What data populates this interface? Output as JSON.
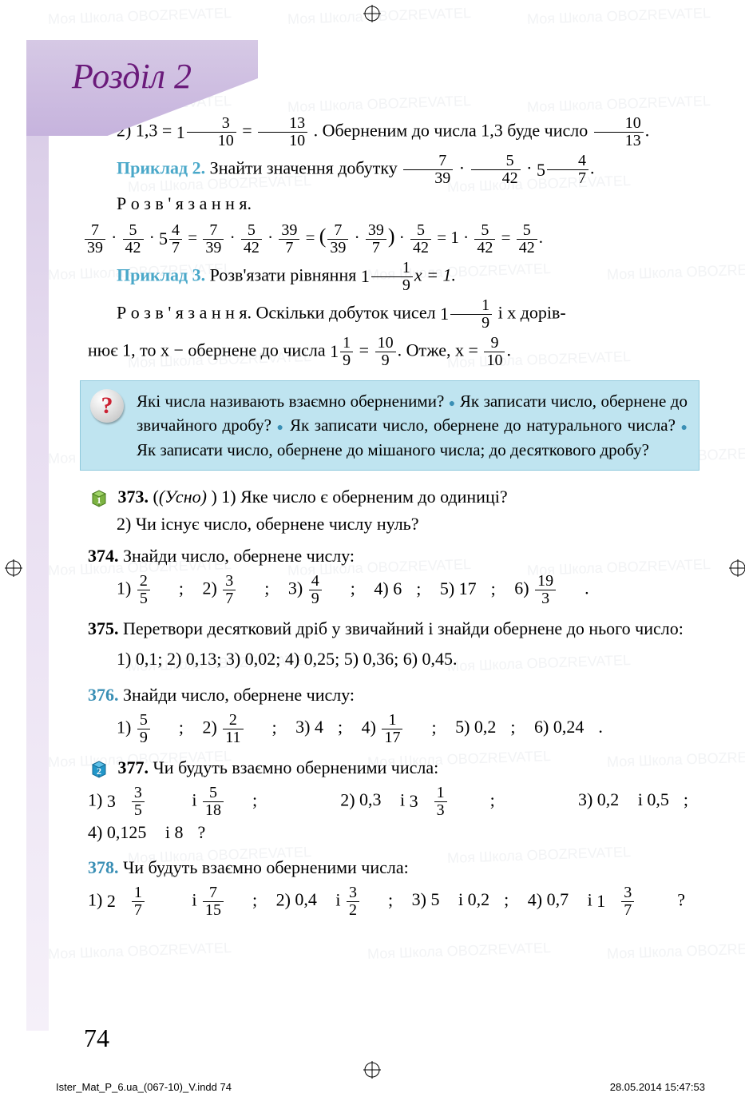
{
  "page": {
    "section_title": "Розділ 2",
    "page_number": "74",
    "footer_left": "Ister_Mat_P_6.ua_(067-10)_V.indd   74",
    "footer_right": "28.05.2014   15:47:53"
  },
  "line2": {
    "prefix": "2) 1,3 = ",
    "mix_int": "1",
    "mix_n": "3",
    "mix_d": "10",
    "eq": " = ",
    "f2_n": "13",
    "f2_d": "10",
    "text": ". Оберненим до числа 1,3 буде число ",
    "f3_n": "10",
    "f3_d": "13",
    "dot": "."
  },
  "ex2": {
    "label": "Приклад 2.",
    "text": " Знайти значення добутку ",
    "a_n": "7",
    "a_d": "39",
    "b_n": "5",
    "b_d": "42",
    "c_int": "5",
    "c_n": "4",
    "c_d": "7",
    "dot": "."
  },
  "solve": "Р о з в ' я з а н н я.",
  "sol2": {
    "a_n": "7",
    "a_d": "39",
    "b_n": "5",
    "b_d": "42",
    "c_int": "5",
    "c_n": "4",
    "c_d": "7",
    "eq": "=",
    "d_n": "7",
    "d_d": "39",
    "e_n": "5",
    "e_d": "42",
    "f_n": "39",
    "f_d": "7",
    "g_n": "7",
    "g_d": "39",
    "h_n": "39",
    "h_d": "7",
    "i_n": "5",
    "i_d": "42",
    "one": "1",
    "j_n": "5",
    "j_d": "42",
    "k_n": "5",
    "k_d": "42",
    "tail": "."
  },
  "ex3": {
    "label": "Приклад 3.",
    "text": " Розв'язати рівняння ",
    "m_int": "1",
    "m_n": "1",
    "m_d": "9",
    "xeq": "x = 1."
  },
  "sol3a": {
    "pre": "Р о з в ' я з а н н я. Оскільки добуток чисел ",
    "m_int": "1",
    "m_n": "1",
    "m_d": "9",
    "mid": " і x дорів-"
  },
  "sol3b": {
    "pre": "нює 1, то x − обернене до числа ",
    "m_int": "1",
    "m_n": "1",
    "m_d": "9",
    "eq": " = ",
    "f_n": "10",
    "f_d": "9",
    "mid": ". Отже, x = ",
    "g_n": "9",
    "g_d": "10",
    "dot": "."
  },
  "qbox": "Які числа називають взаємно оберненими? ● Як записати число, обернене до звичайного дробу? ● Як записати число, обернене до натурального числа? ● Як записати число, обернене до мішаного числа; до десяткового дробу?",
  "t373": {
    "num": "373.",
    "pre": "(Усно) ",
    "q1": "1) Яке число є оберненим до одиниці?",
    "q2": "2) Чи існує число, обернене числу нуль?"
  },
  "t374": {
    "num": "374.",
    "text": "Знайди число, обернене числу:",
    "o1_n": "2",
    "o1_d": "5",
    "o2_n": "3",
    "o2_d": "7",
    "o3_n": "4",
    "o3_d": "9",
    "o4": "6",
    "o5": "17",
    "o6_n": "19",
    "o6_d": "3"
  },
  "t375": {
    "num": "375.",
    "text": "Перетвори десятковий дріб у звичайний і знайди обернене до нього число:",
    "opts": "1) 0,1;   2) 0,13;   3) 0,02;   4) 0,25;   5) 0,36;   6) 0,45."
  },
  "t376": {
    "num": "376.",
    "text": "Знайди число, обернене числу:",
    "o1_n": "5",
    "o1_d": "9",
    "o2_n": "2",
    "o2_d": "11",
    "o3": "4",
    "o4_n": "1",
    "o4_d": "17",
    "o5": "0,2",
    "o6": "0,24"
  },
  "t377": {
    "num": "377.",
    "text": "Чи будуть взаємно оберненими числа:",
    "a_int": "3",
    "a_n": "3",
    "a_d": "5",
    "b_n": "5",
    "b_d": "18",
    "c": "0,3",
    "d_int": "3",
    "d_n": "1",
    "d_d": "3",
    "e": "0,2",
    "f": "0,5",
    "g": "0,125",
    "h": "8"
  },
  "t378": {
    "num": "378.",
    "text": "Чи будуть взаємно оберненими числа:",
    "a_int": "2",
    "a_n": "1",
    "a_d": "7",
    "b_n": "7",
    "b_d": "15",
    "c": "0,4",
    "d_n": "3",
    "d_d": "2",
    "e": "5",
    "f": "0,2",
    "g": "0,7",
    "h_int": "1",
    "h_n": "3",
    "h_d": "7"
  },
  "cubes": {
    "c1_fill": "#7cb342",
    "c1_num": "1",
    "c2_fill": "#2196c9",
    "c2_num": "2"
  },
  "watermark_text": "Моя Школа   OBOZREVATEL"
}
